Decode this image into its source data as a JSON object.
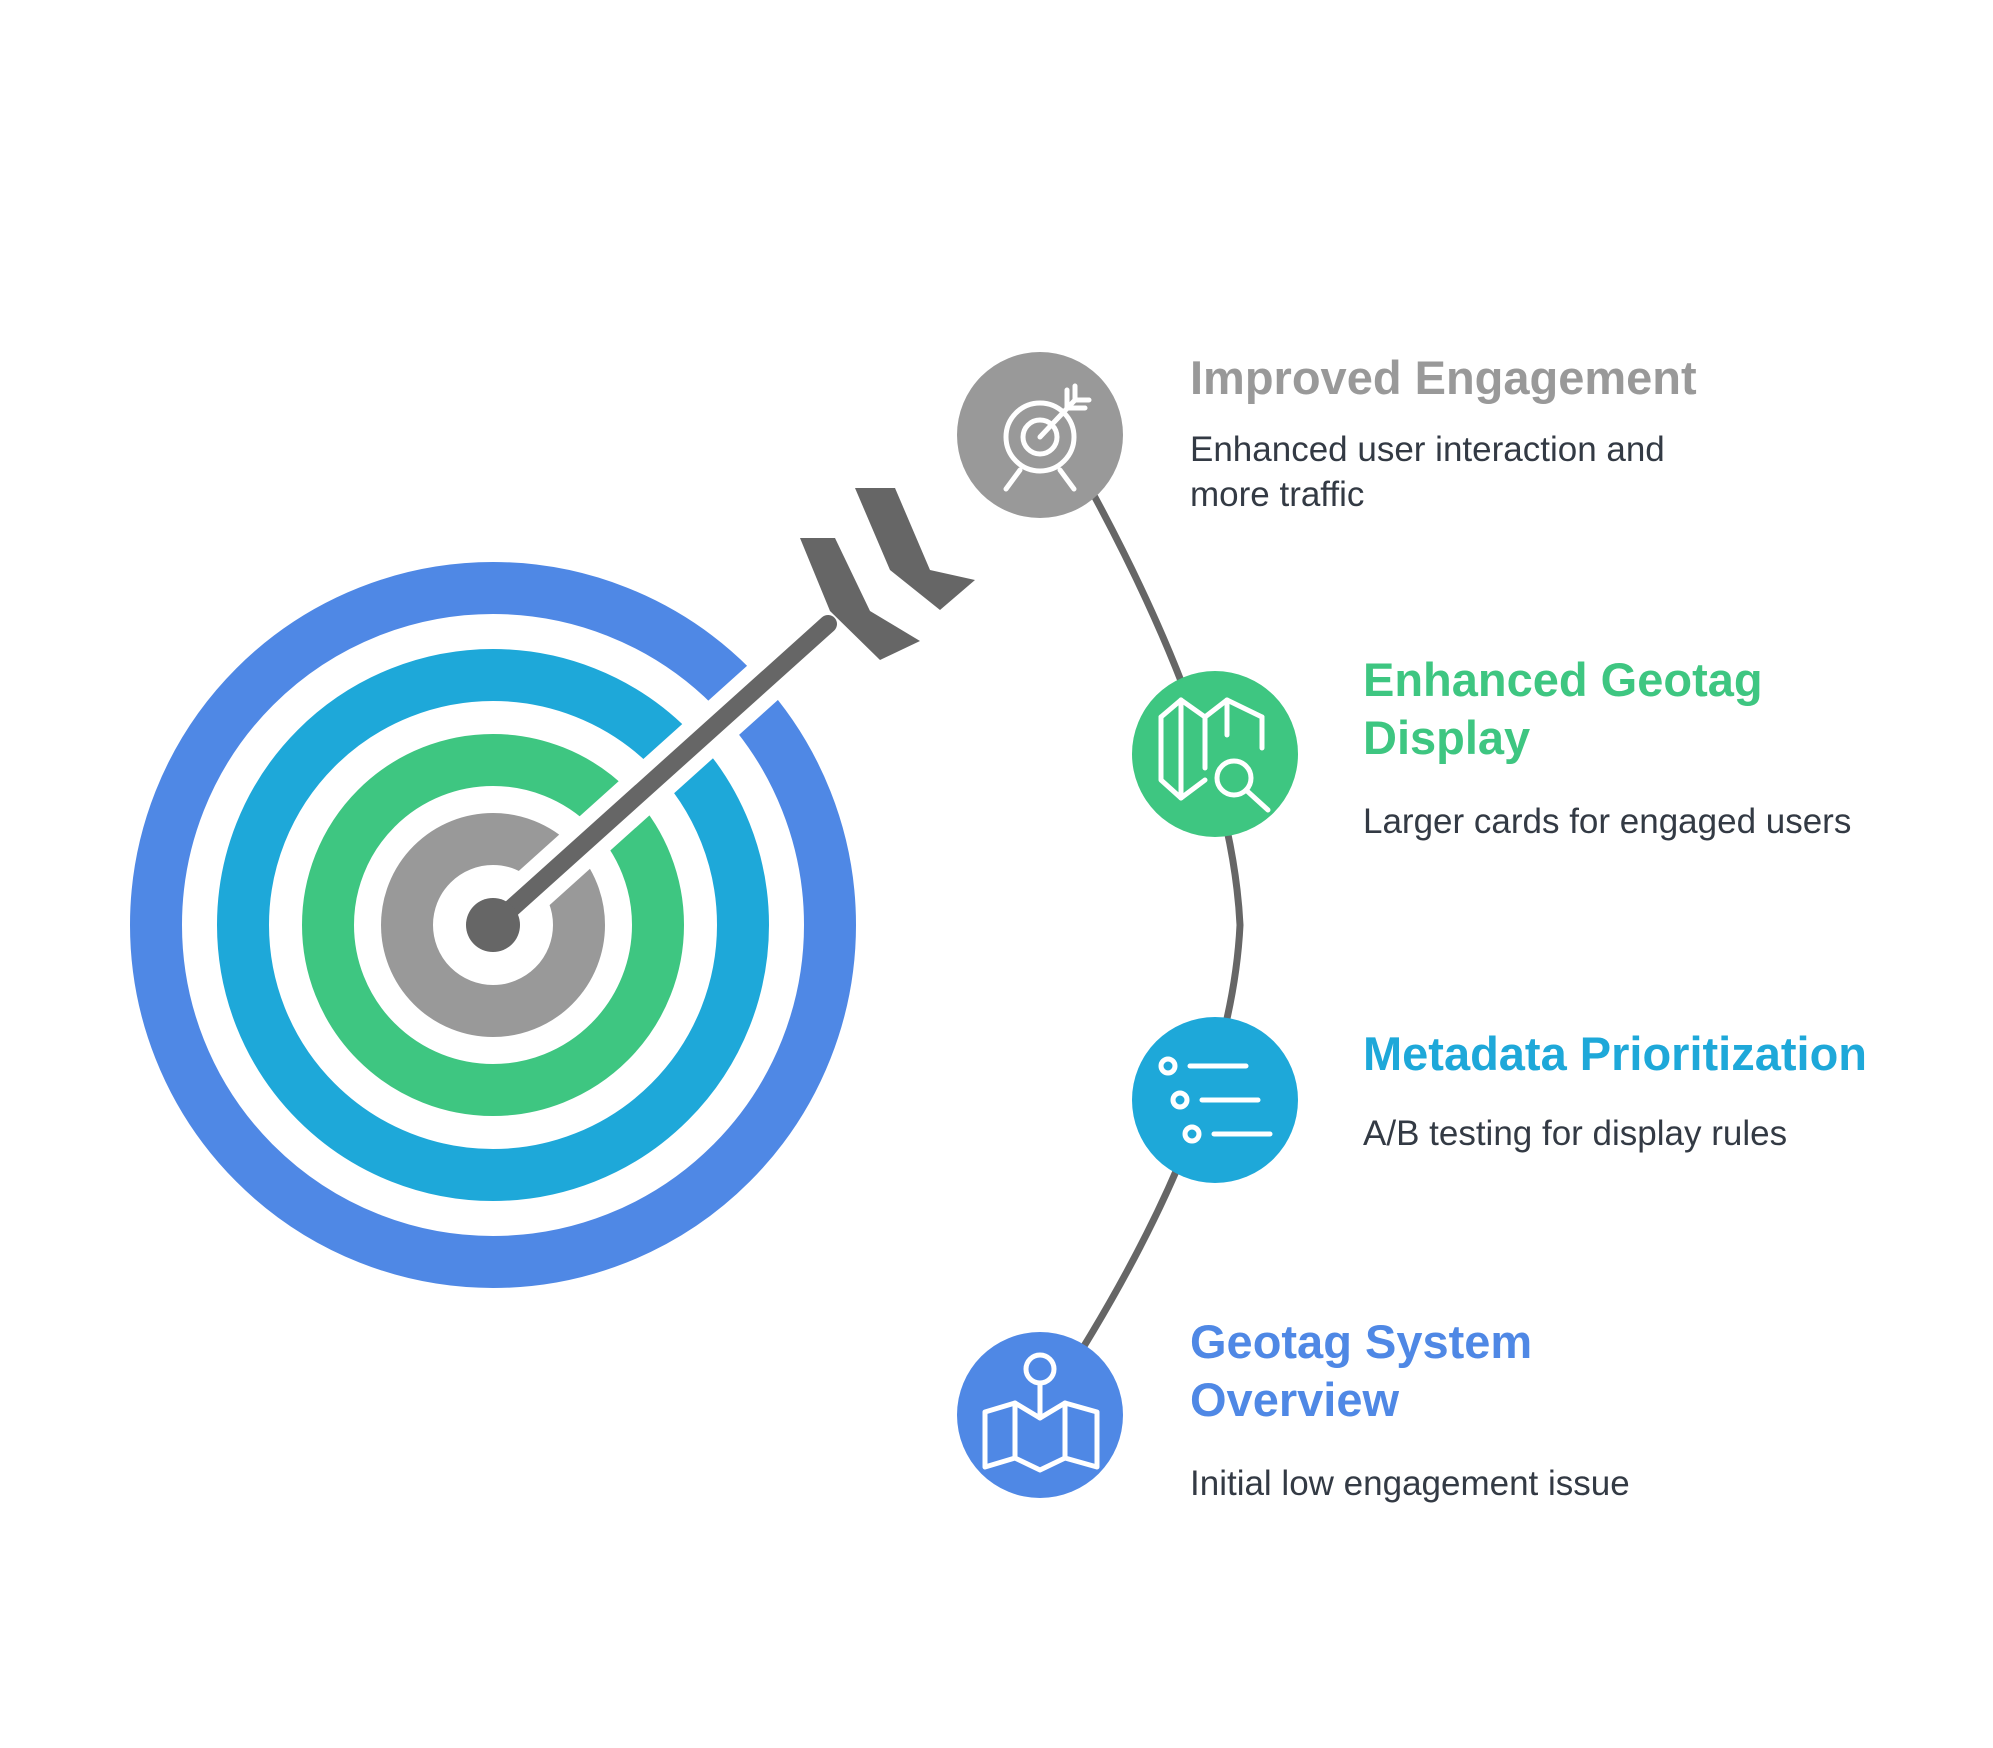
{
  "colors": {
    "gray": "#999999",
    "green": "#3ec681",
    "teal": "#1ea8d9",
    "blue": "#4f88e5",
    "arrow": "#666666",
    "connector": "#666666",
    "desc_text": "#333a44"
  },
  "steps": [
    {
      "title": "Improved Engagement",
      "description": "Enhanced user interaction and\nmore traffic",
      "icon": "target-arrow-icon",
      "color": "#999999"
    },
    {
      "title": "Enhanced Geotag\nDisplay",
      "description": "Larger cards for engaged users",
      "icon": "map-search-icon",
      "color": "#3ec681"
    },
    {
      "title": "Metadata Prioritization",
      "description": "A/B testing for display rules",
      "icon": "list-icon",
      "color": "#1ea8d9"
    },
    {
      "title": "Geotag System\nOverview",
      "description": "Initial low engagement issue",
      "icon": "map-pin-icon",
      "color": "#4f88e5"
    }
  ]
}
